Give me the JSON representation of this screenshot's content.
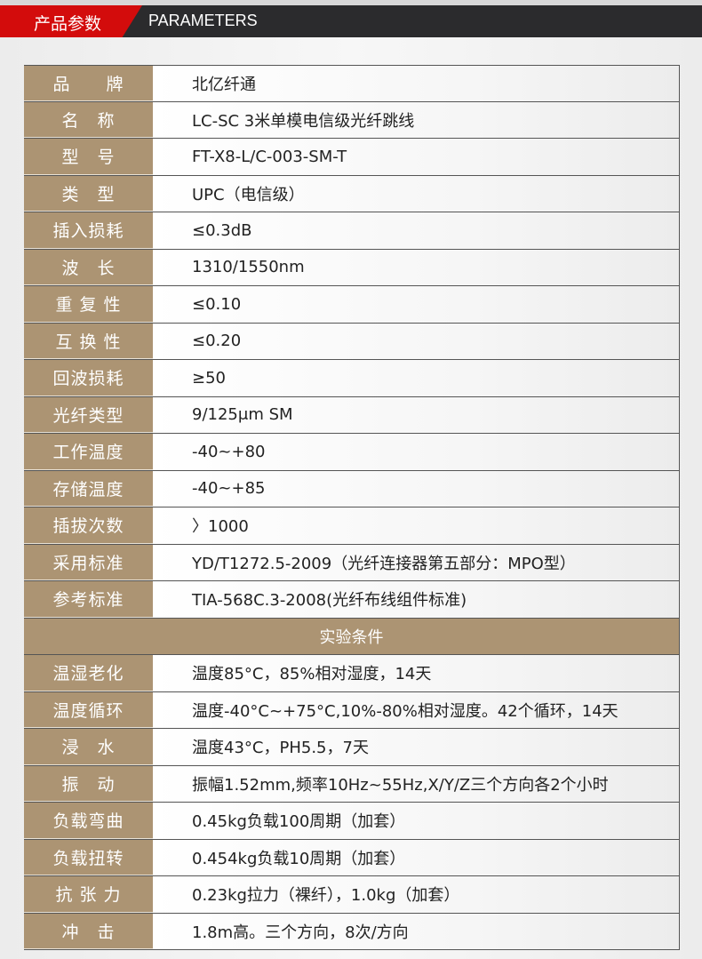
{
  "header": {
    "title_cn": "产品参数",
    "title_en": "PARAMETERS"
  },
  "params": [
    {
      "label": "品　　牌",
      "value": "北亿纤通"
    },
    {
      "label": "名　称",
      "value": "LC-SC 3米单模电信级光纤跳线"
    },
    {
      "label": "型　号",
      "value": "FT-X8-L/C-003-SM-T"
    },
    {
      "label": "类　型",
      "value": "UPC（电信级）"
    },
    {
      "label": "插入损耗",
      "value": "≤0.3dB"
    },
    {
      "label": "波　长",
      "value": "1310/1550nm"
    },
    {
      "label": "重 复 性",
      "value": "≤0.10"
    },
    {
      "label": "互 换 性",
      "value": "≤0.20"
    },
    {
      "label": "回波损耗",
      "value": "≥50"
    },
    {
      "label": "光纤类型",
      "value": "9/125μm SM"
    },
    {
      "label": "工作温度",
      "value": "-40~+80"
    },
    {
      "label": "存储温度",
      "value": "-40~+85"
    },
    {
      "label": "插拔次数",
      "value": "〉1000"
    },
    {
      "label": "采用标准",
      "value": "YD/T1272.5-2009（光纤连接器第五部分：MPO型）"
    },
    {
      "label": "参考标准",
      "value": "TIA-568C.3-2008(光纤布线组件标准)"
    }
  ],
  "section_title": "实验条件",
  "tests": [
    {
      "label": "温湿老化",
      "value": "温度85°C，85%相对湿度，14天"
    },
    {
      "label": "温度循环",
      "value": "温度-40°C~+75°C,10%-80%相对湿度。42个循环，14天"
    },
    {
      "label": "浸　水",
      "value": "温度43°C，PH5.5，7天"
    },
    {
      "label": "振　动",
      "value": "振幅1.52mm,频率10Hz~55Hz,X/Y/Z三个方向各2个小时"
    },
    {
      "label": "负载弯曲",
      "value": "0.45kg负载100周期（加套）"
    },
    {
      "label": "负载扭转",
      "value": "0.454kg负载10周期（加套）"
    },
    {
      "label": "抗 张 力",
      "value": "0.23kg拉力（裸纤），1.0kg（加套）"
    },
    {
      "label": "冲　击",
      "value": "1.8m高。三个方向，8次/方向"
    }
  ],
  "colors": {
    "label_bg": "#ac9473",
    "header_red": "#d30c0c",
    "header_dark": "#2b2b2d"
  }
}
